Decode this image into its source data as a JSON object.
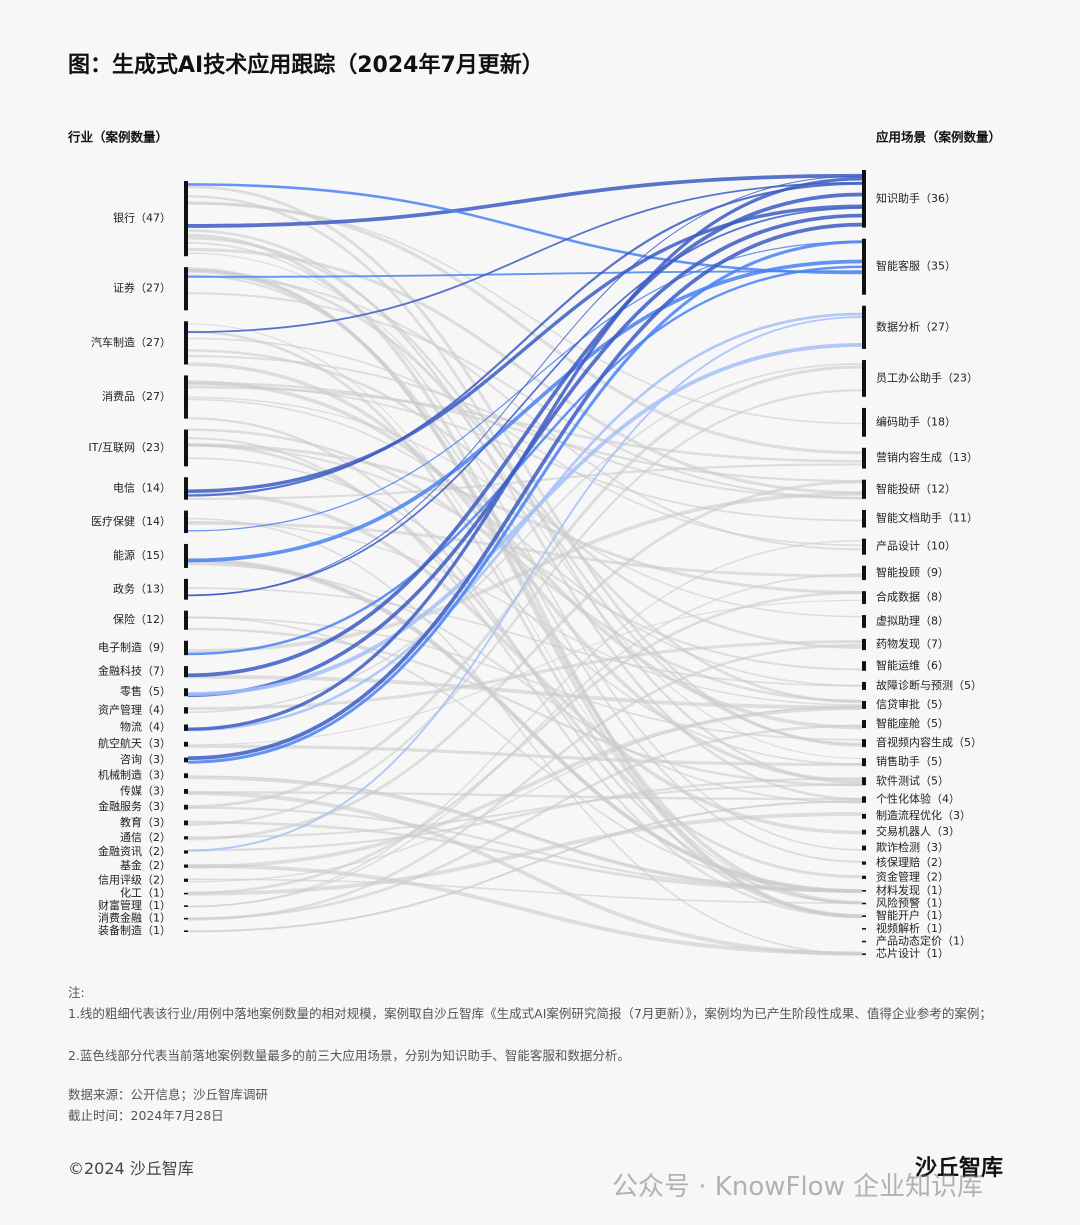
{
  "chart_data": {
    "type": "sankey",
    "title": "图：生成式AI技术应用跟踪（2024年7月更新）",
    "left_label": "行业（案例数量）",
    "right_label": "应用场景（案例数量）",
    "node_color": "#111111",
    "top_colors": [
      "#3b5cc4",
      "#4a83f2",
      "#a6c1f8"
    ],
    "other_color": "#cccccc",
    "left_nodes": [
      {
        "label": "银行（47）",
        "value": 47
      },
      {
        "label": "证券（27）",
        "value": 27
      },
      {
        "label": "汽车制造（27）",
        "value": 27
      },
      {
        "label": "消费品（27）",
        "value": 27
      },
      {
        "label": "IT/互联网（23）",
        "value": 23
      },
      {
        "label": "电信（14）",
        "value": 14
      },
      {
        "label": "医疗保健（14）",
        "value": 14
      },
      {
        "label": "能源（15）",
        "value": 15
      },
      {
        "label": "政务（13）",
        "value": 13
      },
      {
        "label": "保险（12）",
        "value": 12
      },
      {
        "label": "电子制造（9）",
        "value": 9
      },
      {
        "label": "金融科技（7）",
        "value": 7
      },
      {
        "label": "零售（5）",
        "value": 5
      },
      {
        "label": "资产管理（4）",
        "value": 4
      },
      {
        "label": "物流（4）",
        "value": 4
      },
      {
        "label": "航空航天（3）",
        "value": 3
      },
      {
        "label": "咨询（3）",
        "value": 3
      },
      {
        "label": "机械制造（3）",
        "value": 3
      },
      {
        "label": "传媒（3）",
        "value": 3
      },
      {
        "label": "金融服务（3）",
        "value": 3
      },
      {
        "label": "教育（3）",
        "value": 3
      },
      {
        "label": "通信（2）",
        "value": 2
      },
      {
        "label": "金融资讯（2）",
        "value": 2
      },
      {
        "label": "基金（2）",
        "value": 2
      },
      {
        "label": "信用评级（2）",
        "value": 2
      },
      {
        "label": "化工（1）",
        "value": 1
      },
      {
        "label": "财富管理（1）",
        "value": 1
      },
      {
        "label": "消费金融（1）",
        "value": 1
      },
      {
        "label": "装备制造（1）",
        "value": 1
      }
    ],
    "right_nodes": [
      {
        "label": "知识助手（36）",
        "value": 36
      },
      {
        "label": "智能客服（35）",
        "value": 35
      },
      {
        "label": "数据分析（27）",
        "value": 27
      },
      {
        "label": "员工办公助手（23）",
        "value": 23
      },
      {
        "label": "编码助手（18）",
        "value": 18
      },
      {
        "label": "营销内容生成（13）",
        "value": 13
      },
      {
        "label": "智能投研（12）",
        "value": 12
      },
      {
        "label": "智能文档助手（11）",
        "value": 11
      },
      {
        "label": "产品设计（10）",
        "value": 10
      },
      {
        "label": "智能投顾（9）",
        "value": 9
      },
      {
        "label": "合成数据（8）",
        "value": 8
      },
      {
        "label": "虚拟助理（8）",
        "value": 8
      },
      {
        "label": "药物发现（7）",
        "value": 7
      },
      {
        "label": "智能运维（6）",
        "value": 6
      },
      {
        "label": "故障诊断与预测（5）",
        "value": 5
      },
      {
        "label": "信贷审批（5）",
        "value": 5
      },
      {
        "label": "智能座舱（5）",
        "value": 5
      },
      {
        "label": "音视频内容生成（5）",
        "value": 5
      },
      {
        "label": "销售助手（5）",
        "value": 5
      },
      {
        "label": "软件测试（5）",
        "value": 5
      },
      {
        "label": "个性化体验（4）",
        "value": 4
      },
      {
        "label": "制造流程优化（3）",
        "value": 3
      },
      {
        "label": "交易机器人（3）",
        "value": 3
      },
      {
        "label": "欺诈检测（3）",
        "value": 3
      },
      {
        "label": "核保理赔（2）",
        "value": 2
      },
      {
        "label": "资金管理（2）",
        "value": 2
      },
      {
        "label": "材料发现（1）",
        "value": 1
      },
      {
        "label": "风险预警（1）",
        "value": 1
      },
      {
        "label": "智能开户（1）",
        "value": 1
      },
      {
        "label": "视频解析（1）",
        "value": 1
      },
      {
        "label": "产品动态定价（1）",
        "value": 1
      },
      {
        "label": "芯片设计（1）",
        "value": 1
      }
    ]
  },
  "notes": {
    "heading": "注:",
    "line1": "1.线的粗细代表该行业/用例中落地案例数量的相对规模，案例取自沙丘智库《生成式AI案例研究简报（7月更新）》，案例均为已产生阶段性成果、值得企业参考的案例；",
    "line2": "2.蓝色线部分代表当前落地案例数量最多的前三大应用场景，分别为知识助手、智能客服和数据分析。",
    "source": "数据来源：公开信息；沙丘智库调研",
    "date": "截止时间：2024年7月28日",
    "copyright": "©2024 沙丘智库",
    "logo": "沙丘智库",
    "watermark": "公众号 · KnowFlow 企业知识库"
  }
}
